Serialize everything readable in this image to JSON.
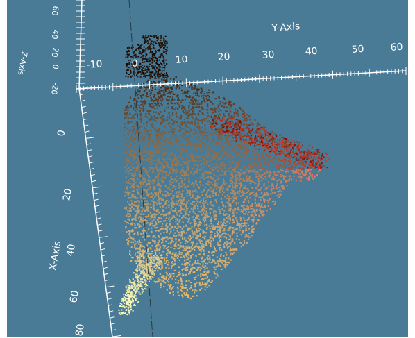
{
  "chart_data": {
    "type": "scatter",
    "projection": "3d",
    "background_color": "#4a7b96",
    "axes": {
      "y": {
        "label": "Y-Axis",
        "ticks": [
          "-10",
          "0",
          "10",
          "20",
          "30",
          "40",
          "50",
          "60"
        ]
      },
      "x": {
        "label": "X-Axis",
        "ticks": [
          "0",
          "20",
          "40",
          "60",
          "80"
        ]
      },
      "z": {
        "label": "Z-Axis",
        "ticks": [
          "60",
          "40",
          "20",
          "0",
          "-20"
        ]
      }
    },
    "color_scale": [
      "#1a0a06",
      "#5a3a26",
      "#b09068",
      "#ffffb0",
      "#ff8060",
      "#d84028",
      "#902010"
    ],
    "point_cloud": {
      "description_free": true,
      "clusters": [
        {
          "y": 12,
          "x": 0,
          "z": 20,
          "color": "#5a3c28"
        },
        {
          "y": 14,
          "x": 10,
          "z": 10,
          "color": "#8a6a48"
        },
        {
          "y": 10,
          "x": 25,
          "z": 0,
          "color": "#c0a070"
        },
        {
          "y": 16,
          "x": 40,
          "z": -5,
          "color": "#d8a868"
        },
        {
          "y": 5,
          "x": 55,
          "z": -10,
          "color": "#f0e8a0"
        },
        {
          "y": 30,
          "x": 5,
          "z": 15,
          "color": "#b03020"
        },
        {
          "y": 38,
          "x": 8,
          "z": 10,
          "color": "#c83828"
        },
        {
          "y": 26,
          "x": 20,
          "z": 5,
          "color": "#e07060"
        },
        {
          "y": 2,
          "x": -5,
          "z": 30,
          "color": "#201008"
        }
      ]
    }
  }
}
